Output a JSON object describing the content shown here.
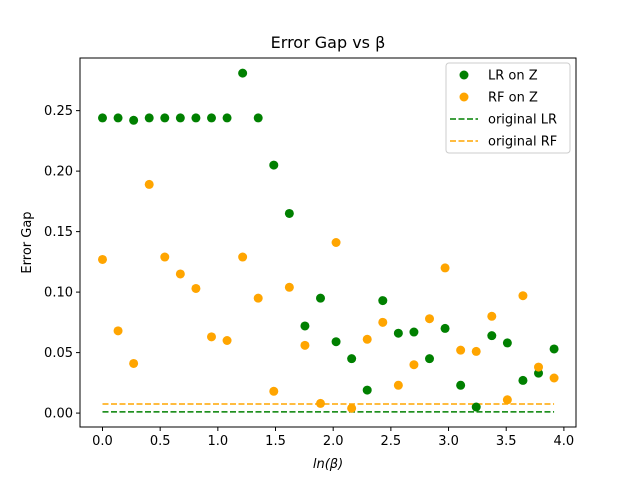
{
  "chart_data": {
    "type": "scatter",
    "title": "Error Gap vs β",
    "xlabel": "ln(β)",
    "ylabel": "Error Gap",
    "xlim": [
      -0.195,
      4.105
    ],
    "ylim": [
      -0.0115,
      0.2935
    ],
    "xticks": [
      0.0,
      0.5,
      1.0,
      1.5,
      2.0,
      2.5,
      3.0,
      3.5,
      4.0
    ],
    "xtick_labels": [
      "0.0",
      "0.5",
      "1.0",
      "1.5",
      "2.0",
      "2.5",
      "3.0",
      "3.5",
      "4.0"
    ],
    "yticks": [
      0.0,
      0.05,
      0.1,
      0.15,
      0.2,
      0.25
    ],
    "ytick_labels": [
      "0.00",
      "0.05",
      "0.10",
      "0.15",
      "0.20",
      "0.25"
    ],
    "grid": false,
    "legend_position": "upper right",
    "series": [
      {
        "name": "LR on Z",
        "kind": "scatter",
        "color": "#008000",
        "x": [
          0.0,
          0.135,
          0.27,
          0.405,
          0.54,
          0.675,
          0.81,
          0.945,
          1.08,
          1.215,
          1.35,
          1.485,
          1.62,
          1.755,
          1.89,
          2.025,
          2.16,
          2.295,
          2.43,
          2.565,
          2.7,
          2.835,
          2.97,
          3.105,
          3.24,
          3.375,
          3.51,
          3.645,
          3.78,
          3.915
        ],
        "y": [
          0.244,
          0.244,
          0.242,
          0.244,
          0.244,
          0.244,
          0.244,
          0.244,
          0.244,
          0.281,
          0.244,
          0.205,
          0.165,
          0.072,
          0.095,
          0.059,
          0.045,
          0.019,
          0.093,
          0.066,
          0.067,
          0.045,
          0.07,
          0.023,
          0.005,
          0.064,
          0.058,
          0.027,
          0.033,
          0.053
        ]
      },
      {
        "name": "RF on Z",
        "kind": "scatter",
        "color": "#ffa500",
        "x": [
          0.0,
          0.135,
          0.27,
          0.405,
          0.54,
          0.675,
          0.81,
          0.945,
          1.08,
          1.215,
          1.35,
          1.485,
          1.62,
          1.755,
          1.89,
          2.025,
          2.16,
          2.295,
          2.43,
          2.565,
          2.7,
          2.835,
          2.97,
          3.105,
          3.24,
          3.375,
          3.51,
          3.645,
          3.78,
          3.915
        ],
        "y": [
          0.127,
          0.068,
          0.041,
          0.189,
          0.129,
          0.115,
          0.103,
          0.063,
          0.06,
          0.129,
          0.095,
          0.018,
          0.104,
          0.056,
          0.008,
          0.141,
          0.004,
          0.061,
          0.075,
          0.023,
          0.04,
          0.078,
          0.12,
          0.052,
          0.051,
          0.08,
          0.011,
          0.097,
          0.038,
          0.029
        ]
      },
      {
        "name": "original LR",
        "kind": "hline",
        "color": "#008000",
        "style": "dashed",
        "y": 0.001,
        "x_range": [
          0.0,
          3.915
        ]
      },
      {
        "name": "original RF",
        "kind": "hline",
        "color": "#ffa500",
        "style": "dashed",
        "y": 0.0075,
        "x_range": [
          0.0,
          3.915
        ]
      }
    ]
  }
}
